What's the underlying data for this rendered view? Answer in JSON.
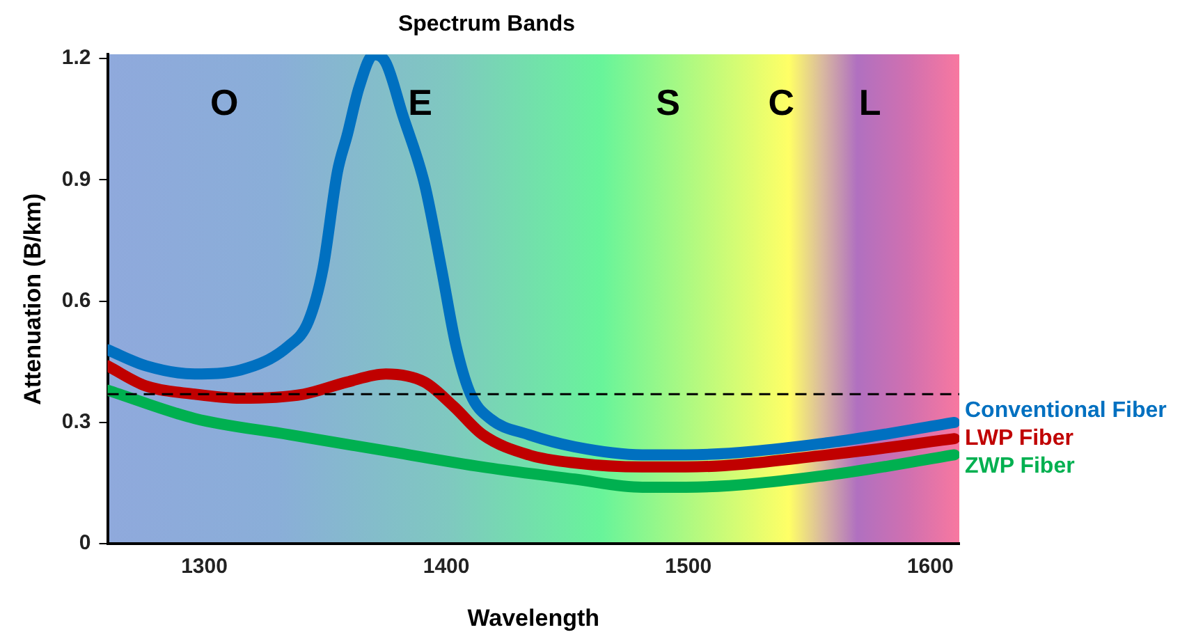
{
  "chart_data": {
    "type": "line",
    "title": "Spectrum Bands",
    "xlabel": "Wavelength",
    "ylabel": "Attenuation (B/km)",
    "xlim": [
      1260,
      1612
    ],
    "xticks": [
      1300,
      1400,
      1500,
      1600
    ],
    "ylim": [
      0,
      1.21
    ],
    "yticks": [
      0,
      0.3,
      0.6,
      0.9,
      1.2
    ],
    "grid": false,
    "marker": "none",
    "line_style": "solid",
    "series": [
      {
        "name": "Conventional Fiber",
        "color": "#0070c0",
        "x": [
          1260,
          1276,
          1296,
          1315,
          1335,
          1343,
          1349,
          1355,
          1359,
          1364,
          1370,
          1375,
          1382,
          1391,
          1398,
          1404,
          1410,
          1418,
          1434,
          1453,
          1481,
          1499,
          1558,
          1610
        ],
        "values": [
          0.48,
          0.44,
          0.42,
          0.43,
          0.49,
          0.55,
          0.68,
          0.92,
          1.01,
          1.13,
          1.21,
          1.19,
          1.06,
          0.89,
          0.68,
          0.49,
          0.37,
          0.31,
          0.27,
          0.24,
          0.22,
          0.22,
          0.25,
          0.3
        ]
      },
      {
        "name": "LWP Fiber",
        "color": "#c00000",
        "x": [
          1260,
          1276,
          1296,
          1315,
          1341,
          1359,
          1375,
          1391,
          1403,
          1415,
          1434,
          1453,
          1481,
          1499,
          1558,
          1610
        ],
        "values": [
          0.44,
          0.39,
          0.37,
          0.36,
          0.37,
          0.4,
          0.42,
          0.4,
          0.34,
          0.27,
          0.22,
          0.2,
          0.19,
          0.19,
          0.22,
          0.26
        ]
      },
      {
        "name": "ZWP Fiber",
        "color": "#00b050",
        "x": [
          1260,
          1296,
          1335,
          1375,
          1415,
          1453,
          1481,
          1499,
          1558,
          1610
        ],
        "values": [
          0.38,
          0.31,
          0.27,
          0.23,
          0.19,
          0.16,
          0.14,
          0.14,
          0.17,
          0.22
        ]
      }
    ],
    "ref_lines": [
      {
        "axis": "y",
        "value": 0.37,
        "color": "#000000",
        "line_style": "dashed"
      }
    ],
    "annotations": [
      "O",
      "E",
      "S",
      "C",
      "L"
    ]
  }
}
